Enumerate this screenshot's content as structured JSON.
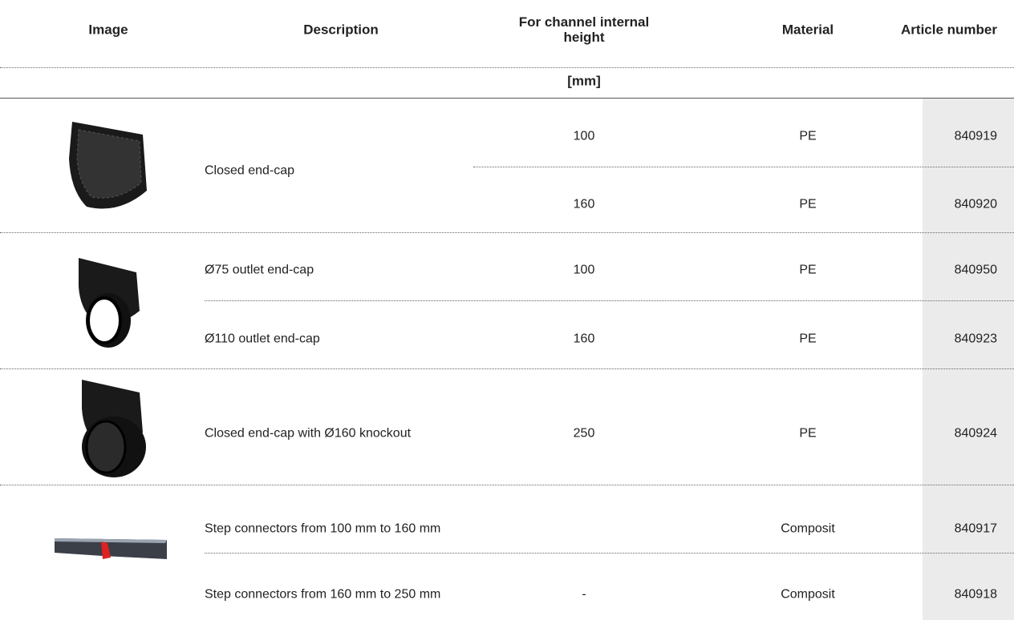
{
  "header": {
    "columns": [
      "Image",
      "Description",
      "For channel internal height",
      "Material",
      "Article number"
    ],
    "unit": "[mm]"
  },
  "groups": [
    {
      "description": "Closed end-cap",
      "items": [
        {
          "height": 100,
          "material": "PE",
          "article": 840919
        },
        {
          "height": 160,
          "material": "PE",
          "article": 840920
        }
      ]
    },
    {
      "items": [
        {
          "description": "Ø75 outlet end-cap",
          "height": 100,
          "material": "PE",
          "article": 840950
        },
        {
          "description": "Ø110 outlet end-cap",
          "height": 160,
          "material": "PE",
          "article": 840923
        }
      ]
    },
    {
      "items": [
        {
          "description": "Closed end-cap with Ø160 knockout",
          "height": 250,
          "material": "PE",
          "article": 840924
        }
      ]
    },
    {
      "items": [
        {
          "description": "Step connectors from 100 mm to 160 mm",
          "material": "Composit",
          "article": 840917
        },
        {
          "description": "Step connectors from 160 mm to 250 mm",
          "height": "-",
          "material": "Composit",
          "article": 840918
        }
      ]
    }
  ]
}
